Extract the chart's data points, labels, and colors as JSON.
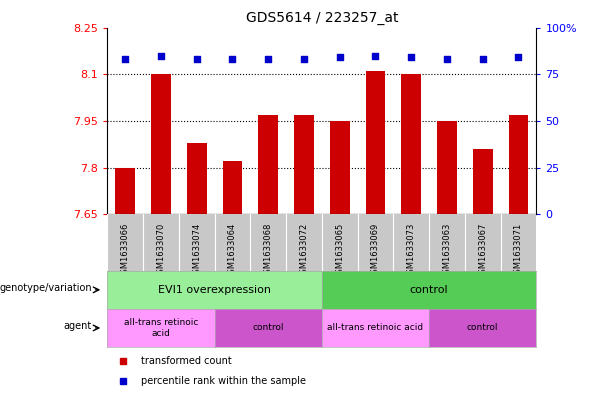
{
  "title": "GDS5614 / 223257_at",
  "samples": [
    "GSM1633066",
    "GSM1633070",
    "GSM1633074",
    "GSM1633064",
    "GSM1633068",
    "GSM1633072",
    "GSM1633065",
    "GSM1633069",
    "GSM1633073",
    "GSM1633063",
    "GSM1633067",
    "GSM1633071"
  ],
  "bar_values": [
    7.8,
    8.1,
    7.88,
    7.82,
    7.97,
    7.97,
    7.95,
    8.11,
    8.1,
    7.95,
    7.86,
    7.97
  ],
  "dot_values": [
    83,
    85,
    83,
    83,
    83,
    83,
    84,
    85,
    84,
    83,
    83,
    84
  ],
  "ylim_left": [
    7.65,
    8.25
  ],
  "ylim_right": [
    0,
    100
  ],
  "yticks_left": [
    7.65,
    7.8,
    7.95,
    8.1,
    8.25
  ],
  "yticks_right": [
    0,
    25,
    50,
    75,
    100
  ],
  "ytick_labels_left": [
    "7.65",
    "7.8",
    "7.95",
    "8.1",
    "8.25"
  ],
  "ytick_labels_right": [
    "0",
    "25",
    "50",
    "75",
    "100%"
  ],
  "hlines": [
    7.8,
    7.95,
    8.1
  ],
  "bar_color": "#cc0000",
  "dot_color": "#0000cc",
  "bar_width": 0.55,
  "genotype_groups": [
    {
      "label": "EVI1 overexpression",
      "start": 0,
      "end": 6,
      "color": "#99ee99"
    },
    {
      "label": "control",
      "start": 6,
      "end": 12,
      "color": "#55cc55"
    }
  ],
  "agent_groups": [
    {
      "label": "all-trans retinoic\nacid",
      "start": 0,
      "end": 3,
      "color": "#ff99ff"
    },
    {
      "label": "control",
      "start": 3,
      "end": 6,
      "color": "#cc55cc"
    },
    {
      "label": "all-trans retinoic acid",
      "start": 6,
      "end": 9,
      "color": "#ff99ff"
    },
    {
      "label": "control",
      "start": 9,
      "end": 12,
      "color": "#cc55cc"
    }
  ],
  "legend_items": [
    {
      "label": "transformed count",
      "color": "#cc0000"
    },
    {
      "label": "percentile rank within the sample",
      "color": "#0000cc"
    }
  ],
  "row_labels": [
    "genotype/variation",
    "agent"
  ],
  "sample_bg": "#c8c8c8",
  "plot_bg": "#ffffff",
  "figure_bg": "#ffffff"
}
